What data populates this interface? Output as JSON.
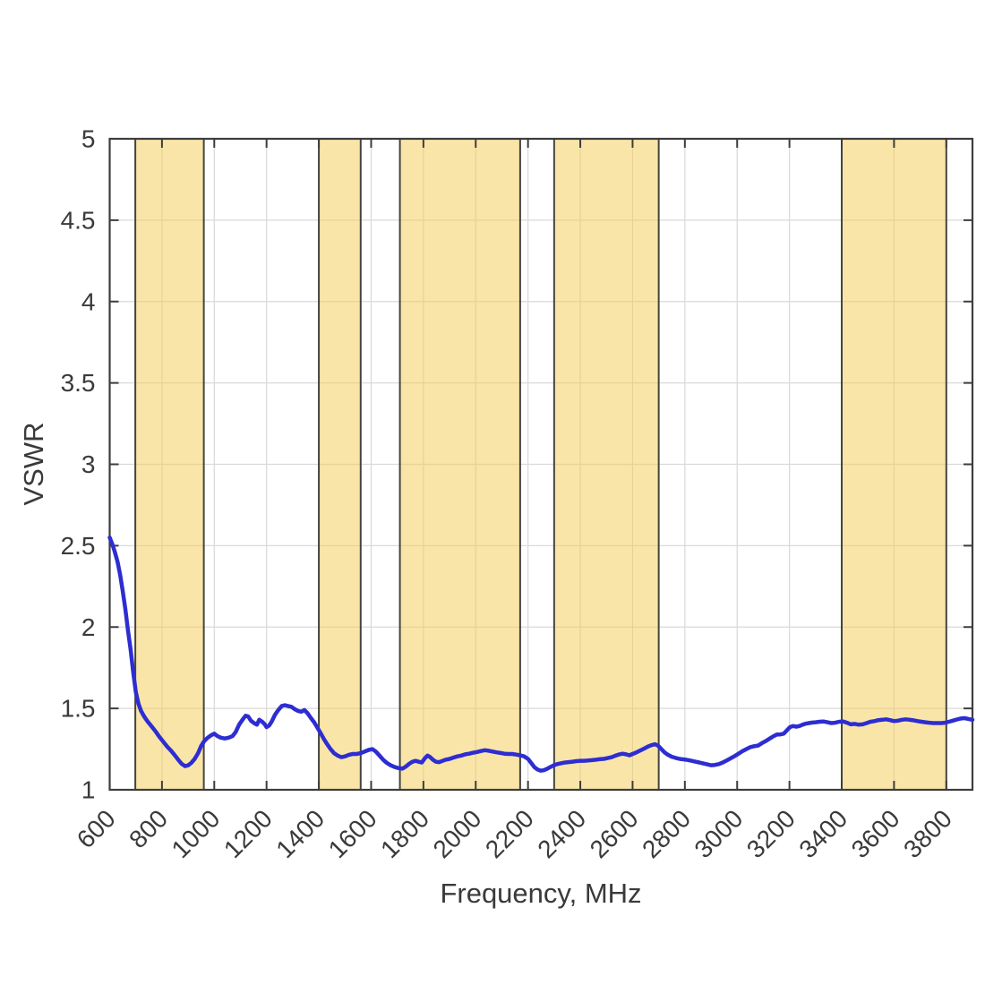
{
  "figure": {
    "background": "#ffffff"
  },
  "chart_data": {
    "type": "line",
    "title": "",
    "xlabel": "Frequency, MHz",
    "ylabel": "VSWR",
    "xlim": [
      600,
      3900
    ],
    "ylim": [
      1,
      5
    ],
    "x_ticks": [
      600,
      800,
      1000,
      1200,
      1400,
      1600,
      1800,
      2000,
      2200,
      2400,
      2600,
      2800,
      3000,
      3200,
      3400,
      3600,
      3800
    ],
    "y_ticks": [
      1,
      1.5,
      2,
      2.5,
      3,
      3.5,
      4,
      4.5,
      5
    ],
    "x_tick_rotation": 45,
    "grid": true,
    "legend": "none",
    "colors": {
      "series": "#2d2dd2",
      "grid": "#d9d9d9",
      "axis": "#3d3d3d",
      "tick_label": "#3a3a3a",
      "band_fill": "rgba(245,203,83,0.5)",
      "band_border": "#44443e"
    },
    "highlight_bands": [
      {
        "name": "band-698-960",
        "x_start": 698,
        "x_end": 960
      },
      {
        "name": "band-1400-1560",
        "x_start": 1400,
        "x_end": 1560
      },
      {
        "name": "band-1710-2170",
        "x_start": 1710,
        "x_end": 2170
      },
      {
        "name": "band-2300-2700",
        "x_start": 2300,
        "x_end": 2700
      },
      {
        "name": "band-3400-3800",
        "x_start": 3400,
        "x_end": 3800
      }
    ],
    "series": [
      {
        "name": "VSWR",
        "x": [
          600,
          610,
          620,
          630,
          640,
          650,
          660,
          670,
          680,
          690,
          700,
          710,
          720,
          732,
          745,
          760,
          775,
          790,
          805,
          820,
          835,
          850,
          862,
          875,
          888,
          900,
          912,
          925,
          938,
          950,
          962,
          975,
          988,
          1000,
          1012,
          1025,
          1040,
          1055,
          1070,
          1082,
          1095,
          1108,
          1120,
          1130,
          1140,
          1152,
          1163,
          1172,
          1182,
          1192,
          1200,
          1210,
          1220,
          1232,
          1245,
          1258,
          1270,
          1282,
          1295,
          1308,
          1320,
          1333,
          1345,
          1357,
          1370,
          1382,
          1395,
          1408,
          1420,
          1432,
          1445,
          1458,
          1472,
          1486,
          1500,
          1515,
          1530,
          1545,
          1560,
          1575,
          1590,
          1605,
          1618,
          1632,
          1646,
          1660,
          1675,
          1690,
          1705,
          1720,
          1733,
          1746,
          1758,
          1770,
          1782,
          1794,
          1806,
          1816,
          1826,
          1836,
          1848,
          1860,
          1872,
          1885,
          1900,
          1915,
          1930,
          1945,
          1960,
          1975,
          1990,
          2005,
          2020,
          2035,
          2050,
          2065,
          2080,
          2095,
          2110,
          2125,
          2140,
          2155,
          2170,
          2185,
          2200,
          2212,
          2224,
          2236,
          2248,
          2260,
          2272,
          2285,
          2298,
          2312,
          2326,
          2340,
          2355,
          2370,
          2385,
          2400,
          2415,
          2430,
          2445,
          2460,
          2475,
          2490,
          2505,
          2520,
          2535,
          2550,
          2562,
          2575,
          2588,
          2600,
          2612,
          2625,
          2638,
          2650,
          2662,
          2674,
          2686,
          2698,
          2710,
          2722,
          2735,
          2750,
          2765,
          2780,
          2795,
          2810,
          2825,
          2840,
          2855,
          2870,
          2885,
          2900,
          2915,
          2930,
          2945,
          2960,
          2975,
          2990,
          3005,
          3020,
          3035,
          3050,
          3065,
          3080,
          3095,
          3110,
          3125,
          3140,
          3152,
          3165,
          3178,
          3190,
          3202,
          3214,
          3226,
          3238,
          3250,
          3262,
          3275,
          3288,
          3300,
          3315,
          3330,
          3345,
          3360,
          3375,
          3390,
          3405,
          3420,
          3435,
          3450,
          3465,
          3480,
          3495,
          3510,
          3525,
          3540,
          3555,
          3570,
          3585,
          3600,
          3615,
          3630,
          3645,
          3660,
          3675,
          3690,
          3705,
          3720,
          3735,
          3750,
          3765,
          3780,
          3795,
          3810,
          3825,
          3840,
          3855,
          3870,
          3885,
          3900
        ],
        "y": [
          2.55,
          2.51,
          2.46,
          2.4,
          2.32,
          2.22,
          2.11,
          1.98,
          1.86,
          1.72,
          1.6,
          1.53,
          1.485,
          1.45,
          1.42,
          1.39,
          1.36,
          1.325,
          1.295,
          1.265,
          1.24,
          1.21,
          1.185,
          1.16,
          1.145,
          1.15,
          1.165,
          1.19,
          1.225,
          1.27,
          1.3,
          1.32,
          1.335,
          1.345,
          1.33,
          1.32,
          1.315,
          1.32,
          1.33,
          1.355,
          1.4,
          1.43,
          1.455,
          1.45,
          1.425,
          1.41,
          1.4,
          1.43,
          1.42,
          1.405,
          1.385,
          1.395,
          1.42,
          1.46,
          1.49,
          1.515,
          1.52,
          1.515,
          1.51,
          1.495,
          1.485,
          1.48,
          1.49,
          1.47,
          1.44,
          1.415,
          1.38,
          1.345,
          1.31,
          1.28,
          1.25,
          1.225,
          1.21,
          1.2,
          1.205,
          1.215,
          1.22,
          1.22,
          1.225,
          1.235,
          1.245,
          1.25,
          1.235,
          1.21,
          1.185,
          1.165,
          1.15,
          1.14,
          1.133,
          1.13,
          1.143,
          1.16,
          1.172,
          1.178,
          1.172,
          1.168,
          1.195,
          1.21,
          1.2,
          1.185,
          1.172,
          1.17,
          1.177,
          1.185,
          1.19,
          1.198,
          1.205,
          1.21,
          1.218,
          1.222,
          1.228,
          1.232,
          1.238,
          1.243,
          1.24,
          1.235,
          1.23,
          1.226,
          1.222,
          1.22,
          1.22,
          1.216,
          1.212,
          1.205,
          1.19,
          1.165,
          1.14,
          1.125,
          1.118,
          1.12,
          1.128,
          1.14,
          1.15,
          1.158,
          1.163,
          1.167,
          1.17,
          1.173,
          1.176,
          1.178,
          1.178,
          1.18,
          1.182,
          1.185,
          1.188,
          1.19,
          1.195,
          1.2,
          1.21,
          1.218,
          1.222,
          1.218,
          1.212,
          1.22,
          1.228,
          1.238,
          1.248,
          1.258,
          1.268,
          1.275,
          1.28,
          1.27,
          1.25,
          1.23,
          1.215,
          1.203,
          1.196,
          1.19,
          1.187,
          1.183,
          1.178,
          1.173,
          1.168,
          1.162,
          1.156,
          1.151,
          1.153,
          1.158,
          1.168,
          1.18,
          1.193,
          1.207,
          1.222,
          1.237,
          1.25,
          1.262,
          1.268,
          1.272,
          1.287,
          1.3,
          1.315,
          1.33,
          1.34,
          1.34,
          1.345,
          1.365,
          1.385,
          1.392,
          1.388,
          1.392,
          1.4,
          1.406,
          1.41,
          1.413,
          1.415,
          1.418,
          1.42,
          1.415,
          1.41,
          1.412,
          1.418,
          1.42,
          1.412,
          1.402,
          1.405,
          1.4,
          1.402,
          1.41,
          1.418,
          1.422,
          1.428,
          1.43,
          1.433,
          1.428,
          1.422,
          1.425,
          1.43,
          1.433,
          1.43,
          1.427,
          1.422,
          1.418,
          1.415,
          1.412,
          1.41,
          1.41,
          1.41,
          1.412,
          1.418,
          1.425,
          1.432,
          1.438,
          1.44,
          1.435,
          1.43
        ]
      }
    ]
  }
}
